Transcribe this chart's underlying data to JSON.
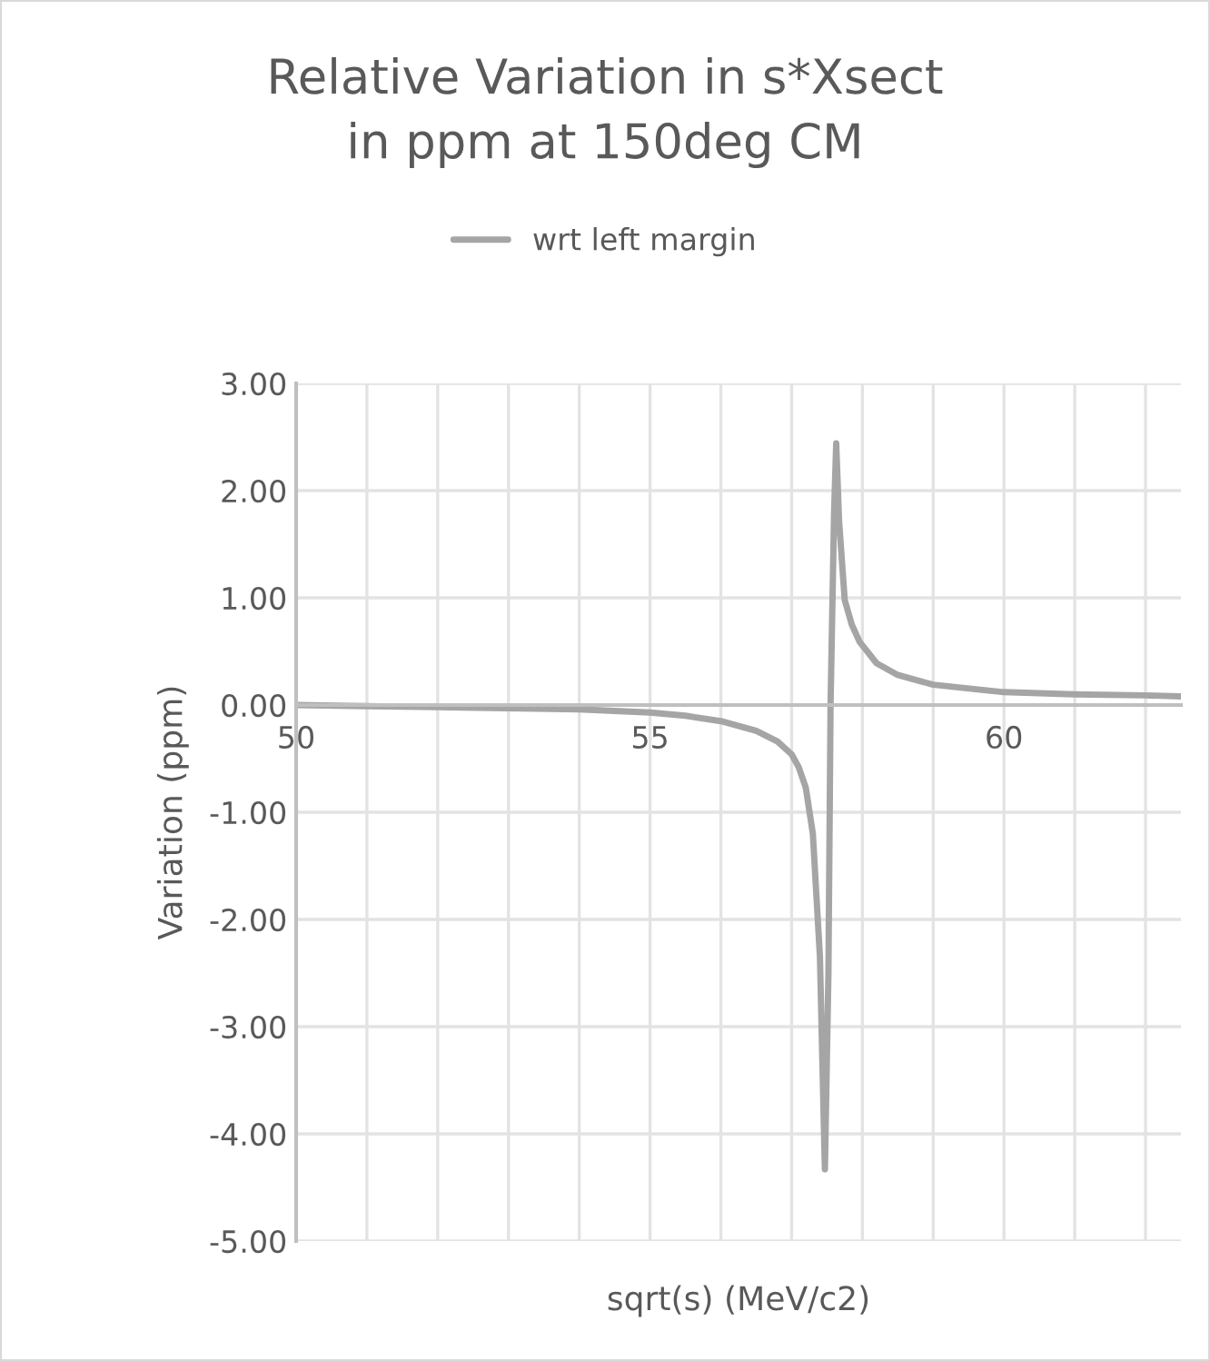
{
  "chart_data": {
    "type": "line",
    "title": "Relative Variation in s*Xsect\nin ppm at 150deg CM",
    "xlabel": "sqrt(s) (MeV/c2)",
    "ylabel": "Variation (ppm)",
    "series": [
      {
        "name": "wrt left margin",
        "color": "#a5a5a5",
        "x": [
          50,
          51,
          52,
          53,
          54,
          55,
          55.5,
          56,
          56.5,
          56.8,
          57,
          57.1,
          57.2,
          57.3,
          57.4,
          57.47,
          57.52,
          57.55,
          57.6,
          57.63,
          57.67,
          57.75,
          57.85,
          57.96,
          58.2,
          58.5,
          59,
          60,
          61,
          62,
          62.5
        ],
        "values": [
          0.0,
          -0.01,
          -0.02,
          -0.03,
          -0.04,
          -0.07,
          -0.1,
          -0.15,
          -0.24,
          -0.34,
          -0.46,
          -0.58,
          -0.77,
          -1.2,
          -2.35,
          -4.33,
          -2.5,
          0.0,
          1.8,
          2.44,
          1.72,
          0.98,
          0.75,
          0.59,
          0.39,
          0.28,
          0.19,
          0.12,
          0.1,
          0.09,
          0.08
        ]
      }
    ],
    "xlim": [
      50,
      62.5
    ],
    "xticks": [
      50,
      {
        "value": 51,
        "label": null
      },
      {
        "value": 52,
        "label": null
      },
      {
        "value": 53,
        "label": null
      },
      {
        "value": 54,
        "label": null
      },
      55,
      {
        "value": 56,
        "label": null
      },
      {
        "value": 57,
        "label": null
      },
      {
        "value": 58,
        "label": null
      },
      {
        "value": 59,
        "label": null
      },
      60,
      {
        "value": 61,
        "label": null
      },
      {
        "value": 62,
        "label": null
      }
    ],
    "ylim": [
      -5,
      3
    ],
    "yticks": [
      {
        "value": 3,
        "label": "3.00"
      },
      {
        "value": 2,
        "label": "2.00"
      },
      {
        "value": 1,
        "label": "1.00"
      },
      {
        "value": 0,
        "label": "0.00"
      },
      {
        "value": -1,
        "label": "-1.00"
      },
      {
        "value": -2,
        "label": "-2.00"
      },
      {
        "value": -3,
        "label": "-3.00"
      },
      {
        "value": -4,
        "label": "-4.00"
      },
      {
        "value": -5,
        "label": "-5.00"
      }
    ],
    "grid": true,
    "legend": "top",
    "marker": "none",
    "line_style": "solid"
  }
}
